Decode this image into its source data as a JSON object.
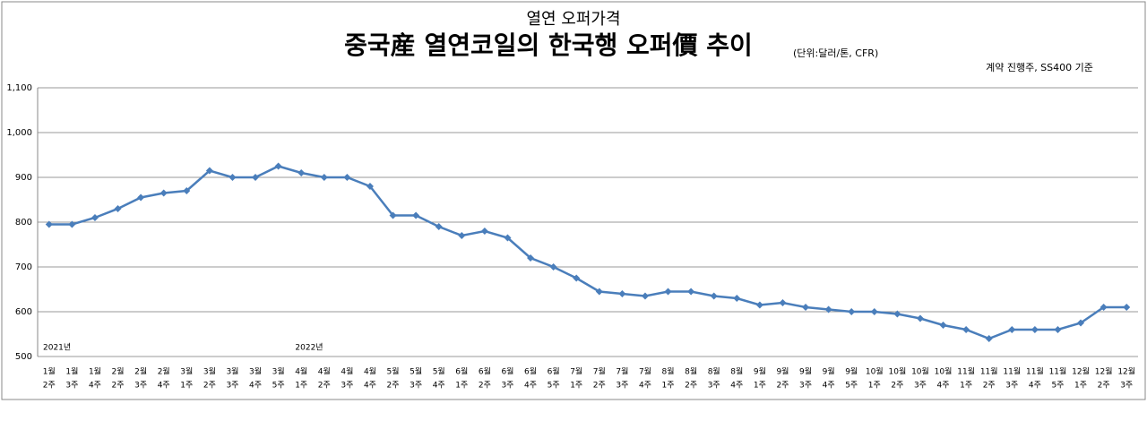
{
  "chart_data": {
    "type": "line",
    "supertitle": "열연 오퍼가격",
    "title": "중국産 열연코일의 한국행 오퍼價 추이",
    "subtitle": "(단위:달러/톤, CFR)",
    "note": "계약 진행주, SS400 기준",
    "annotations": [
      "2021년",
      "2022년"
    ],
    "categories": [
      [
        "1월",
        "2주"
      ],
      [
        "1월",
        "3주"
      ],
      [
        "1월",
        "4주"
      ],
      [
        "2월",
        "2주"
      ],
      [
        "2월",
        "3주"
      ],
      [
        "2월",
        "4주"
      ],
      [
        "3월",
        "1주"
      ],
      [
        "3월",
        "2주"
      ],
      [
        "3월",
        "3주"
      ],
      [
        "3월",
        "4주"
      ],
      [
        "3월",
        "5주"
      ],
      [
        "4월",
        "1주"
      ],
      [
        "4월",
        "2주"
      ],
      [
        "4월",
        "3주"
      ],
      [
        "4월",
        "4주"
      ],
      [
        "5월",
        "2주"
      ],
      [
        "5월",
        "3주"
      ],
      [
        "5월",
        "4주"
      ],
      [
        "6월",
        "1주"
      ],
      [
        "6월",
        "2주"
      ],
      [
        "6월",
        "3주"
      ],
      [
        "6월",
        "4주"
      ],
      [
        "6월",
        "5주"
      ],
      [
        "7월",
        "1주"
      ],
      [
        "7월",
        "2주"
      ],
      [
        "7월",
        "3주"
      ],
      [
        "7월",
        "4주"
      ],
      [
        "8월",
        "1주"
      ],
      [
        "8월",
        "2주"
      ],
      [
        "8월",
        "3주"
      ],
      [
        "8월",
        "4주"
      ],
      [
        "9월",
        "1주"
      ],
      [
        "9월",
        "2주"
      ],
      [
        "9월",
        "3주"
      ],
      [
        "9월",
        "4주"
      ],
      [
        "9월",
        "5주"
      ],
      [
        "10월",
        "1주"
      ],
      [
        "10월",
        "2주"
      ],
      [
        "10월",
        "3주"
      ],
      [
        "10월",
        "4주"
      ],
      [
        "11월",
        "1주"
      ],
      [
        "11월",
        "2주"
      ],
      [
        "11월",
        "3주"
      ],
      [
        "11월",
        "4주"
      ],
      [
        "11월",
        "5주"
      ],
      [
        "12월",
        "1주"
      ],
      [
        "12월",
        "2주"
      ],
      [
        "12월",
        "3주"
      ]
    ],
    "values": [
      795,
      795,
      810,
      830,
      855,
      865,
      870,
      915,
      900,
      900,
      925,
      910,
      900,
      900,
      880,
      815,
      815,
      790,
      770,
      780,
      765,
      720,
      700,
      675,
      645,
      640,
      635,
      645,
      645,
      635,
      630,
      615,
      620,
      610,
      605,
      600,
      600,
      595,
      585,
      570,
      560,
      540,
      560,
      560,
      560,
      575,
      610,
      610
    ],
    "color": "#4a7ebb",
    "ylim": [
      500,
      1100
    ],
    "yticks": [
      500,
      600,
      700,
      800,
      900,
      {
        "value": 1000,
        "label": "1,000"
      },
      {
        "value": 1100,
        "label": "1,100"
      }
    ],
    "grid": true
  }
}
